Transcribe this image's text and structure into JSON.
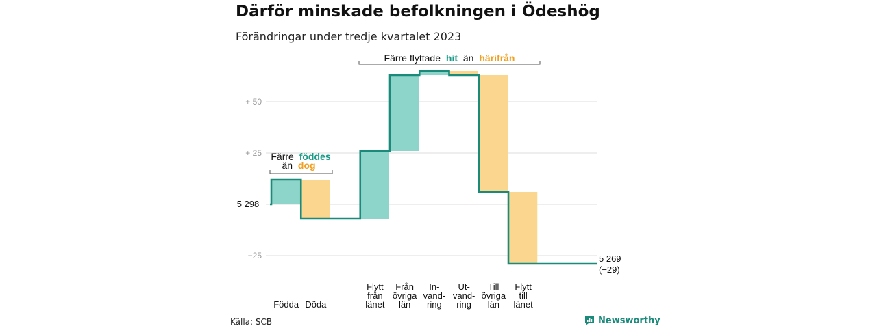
{
  "header": {
    "title": "Därför minskade befolkningen i Ödeshög",
    "subtitle": "Förändringar under tredje kvartalet 2023"
  },
  "source": "Källa: SCB",
  "brand": {
    "name": "Newsworthy"
  },
  "colors": {
    "teal": "#8dd5cb",
    "orange": "#fbd68e",
    "line": "#1a8a7a",
    "teal_text": "#1a9a88",
    "orange_text": "#f0a020",
    "grid": "#dddddd",
    "tick": "#999999"
  },
  "annotations": {
    "born": {
      "line1": "Färre",
      "word1": "föddes",
      "line2a": "än",
      "word2": "dog"
    },
    "moved": {
      "prefix": "Färre flyttade",
      "word1": "hit",
      "mid": "än",
      "word2": "härifrån"
    }
  },
  "chart_data": {
    "type": "waterfall",
    "title": "Därför minskade befolkningen i Ödeshög",
    "subtitle": "Förändringar under tredje kvartalet 2023",
    "start_value": 5298,
    "start_label": "5 298",
    "end_value": 5269,
    "end_label": "5 269",
    "end_change_label": "(−29)",
    "yticks": [
      {
        "value": 50,
        "label": "+ 50"
      },
      {
        "value": 25,
        "label": "+ 25"
      },
      {
        "value": -25,
        "label": "−25"
      }
    ],
    "steps": [
      {
        "label_lines": [
          "Födda"
        ],
        "kind": "in",
        "start": 0,
        "end": 12
      },
      {
        "label_lines": [
          "Döda"
        ],
        "kind": "out",
        "start": 12,
        "end": -7
      },
      {
        "label_lines": [
          "Flytt",
          "från",
          "länet"
        ],
        "kind": "in",
        "start": -7,
        "end": 26
      },
      {
        "label_lines": [
          "Från",
          "övriga",
          "län"
        ],
        "kind": "in",
        "start": 26,
        "end": 63
      },
      {
        "label_lines": [
          "In-",
          "vand-",
          "ring"
        ],
        "kind": "in",
        "start": 63,
        "end": 65
      },
      {
        "label_lines": [
          "Ut-",
          "vand-",
          "ring"
        ],
        "kind": "out",
        "start": 65,
        "end": 63
      },
      {
        "label_lines": [
          "Till",
          "övriga",
          "län"
        ],
        "kind": "out",
        "start": 63,
        "end": 6
      },
      {
        "label_lines": [
          "Flytt",
          "till",
          "länet"
        ],
        "kind": "out",
        "start": 6,
        "end": -29
      }
    ]
  }
}
